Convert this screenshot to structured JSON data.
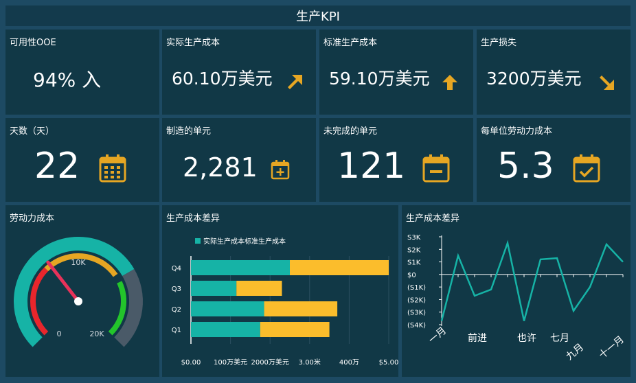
{
  "header": {
    "title": "生产KPI"
  },
  "kpis_row1": [
    {
      "label": "可用性OOE",
      "value": "94% 入",
      "icon": "none"
    },
    {
      "label": "实际生产成本",
      "value": "60.10万美元",
      "icon": "arrow-up-right-icon"
    },
    {
      "label": "标准生产成本",
      "value": "59.10万美元",
      "icon": "arrow-up-icon"
    },
    {
      "label": "生产损失",
      "value": "3200万美元",
      "icon": "arrow-down-right-icon"
    }
  ],
  "kpis_row2": [
    {
      "label": "天数（天）",
      "value": "22",
      "icon": "calendar-icon"
    },
    {
      "label": "制造的单元",
      "value": "2,281",
      "icon": "calendar-plus-icon"
    },
    {
      "label": "未完成的单元",
      "value": "121",
      "icon": "calendar-minus-icon"
    },
    {
      "label": "每单位劳动力成本",
      "value": "5.3",
      "icon": "calendar-check-icon"
    }
  ],
  "colors": {
    "accent": "#e6a623",
    "teal": "#16b3a6",
    "yellow": "#fbbd2c",
    "red": "#e8262c",
    "green": "#23c52b",
    "grey": "#4a5a68"
  },
  "gauge": {
    "title": "劳动力成本",
    "min_label": "0",
    "mid_label": "10K",
    "max_label": "20K",
    "value_fraction": 0.36
  },
  "bar_chart": {
    "title": "生产成本差异",
    "legend_label": "实际生产成本标准生产成本",
    "chart_data": {
      "type": "bar",
      "orientation": "horizontal",
      "stacked": true,
      "categories": [
        "Q4",
        "Q3",
        "Q2",
        "Q1"
      ],
      "series": [
        {
          "name": "实际生产成本",
          "values": [
            2.5,
            1.15,
            1.85,
            1.75
          ]
        },
        {
          "name": "标准生产成本",
          "values": [
            2.5,
            1.15,
            1.85,
            1.75
          ]
        }
      ],
      "xlim": [
        0,
        5
      ],
      "x_ticks": [
        "$0.00",
        "100万美元",
        "2000万美元",
        "3.00米",
        "400万",
        "$5.00"
      ]
    }
  },
  "line_chart": {
    "title": "生产成本差异",
    "chart_data": {
      "type": "line",
      "y_ticks": [
        "S3K",
        "S2K",
        "S1K",
        "$0",
        "(S1K)",
        "(S2K)",
        "(S3K)",
        "(S4K)"
      ],
      "ylim": [
        -4,
        3
      ],
      "x_labels": [
        "一月",
        "前进",
        "也许",
        "七月",
        "九月",
        "十一月"
      ],
      "values": [
        -3.7,
        1.5,
        -1.7,
        -1.2,
        2.5,
        -3.7,
        1.2,
        1.3,
        -2.9,
        -1.0,
        2.4,
        1.0
      ]
    }
  }
}
